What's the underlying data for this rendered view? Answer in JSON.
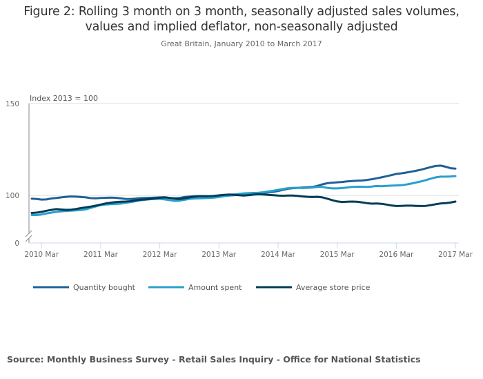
{
  "header": {
    "title_line1": "Figure 2: Rolling 3 month on 3 month, seasonally adjusted sales volumes,",
    "title_line2": "values and implied deflator, non-seasonally adjusted",
    "subtitle": "Great Britain, January 2010 to March 2017"
  },
  "source": "Source: Monthly Business Survey - Retail Sales Inquiry - Office for National Statistics",
  "chart_data": {
    "type": "line",
    "title": "Figure 2: Rolling 3 month on 3 month, seasonally adjusted sales volumes, values and implied deflator, non-seasonally adjusted",
    "subtitle": "Great Britain, January 2010 to March 2017",
    "xlabel": "",
    "ylabel": "Index 2013 = 100",
    "y_ticks": [
      0,
      100,
      150
    ],
    "y_axis_break": true,
    "ylim_display": [
      88,
      150
    ],
    "x_start": "2010 Jan",
    "x_end": "2017 Mar",
    "x_tick_labels": [
      "2010 Mar",
      "2011 Mar",
      "2012 Mar",
      "2013 Mar",
      "2014 Mar",
      "2015 Mar",
      "2016 Mar",
      "2017 Mar"
    ],
    "x_tick_month_index": [
      2,
      14,
      26,
      38,
      50,
      62,
      74,
      86
    ],
    "grid": "horizontal",
    "legend_position": "bottom-left",
    "series": [
      {
        "name": "Quantity bought",
        "color": "#206095",
        "values": [
          98.2,
          98.0,
          97.7,
          97.8,
          98.3,
          98.6,
          98.9,
          99.2,
          99.4,
          99.3,
          99.1,
          98.9,
          98.5,
          98.4,
          98.6,
          98.7,
          98.8,
          98.7,
          98.4,
          98.1,
          98.0,
          98.2,
          98.5,
          98.6,
          98.7,
          98.8,
          98.9,
          99.0,
          98.6,
          98.4,
          98.6,
          99.1,
          99.3,
          99.5,
          99.6,
          99.6,
          99.5,
          99.3,
          99.4,
          99.7,
          99.9,
          100.1,
          100.3,
          100.5,
          100.8,
          101.1,
          101.3,
          101.4,
          101.6,
          101.9,
          102.4,
          103.0,
          103.6,
          103.9,
          104.1,
          104.3,
          104.4,
          104.6,
          105.2,
          106.0,
          106.6,
          106.9,
          107.1,
          107.3,
          107.6,
          107.8,
          108.0,
          108.1,
          108.4,
          108.8,
          109.3,
          109.8,
          110.4,
          111.0,
          111.7,
          112.0,
          112.4,
          112.9,
          113.4,
          114.0,
          114.7,
          115.4,
          116.0,
          116.2,
          115.6,
          114.8,
          114.6
        ]
      },
      {
        "name": "Amount spent",
        "color": "#27a0cc",
        "values": [
          89.3,
          89.3,
          89.6,
          90.2,
          90.6,
          91.0,
          91.3,
          91.5,
          91.7,
          91.8,
          92.0,
          92.4,
          93.2,
          94.0,
          94.7,
          95.0,
          95.2,
          95.3,
          95.5,
          95.9,
          96.3,
          96.8,
          97.3,
          97.6,
          97.9,
          98.1,
          98.1,
          97.8,
          97.4,
          97.0,
          97.1,
          97.6,
          98.1,
          98.3,
          98.4,
          98.5,
          98.6,
          98.8,
          99.1,
          99.5,
          99.9,
          100.3,
          100.8,
          101.1,
          101.2,
          101.3,
          101.4,
          101.7,
          102.1,
          102.5,
          103.0,
          103.5,
          103.9,
          104.1,
          104.1,
          104.0,
          104.1,
          104.3,
          104.6,
          104.6,
          104.1,
          103.8,
          103.8,
          104.0,
          104.3,
          104.6,
          104.7,
          104.7,
          104.6,
          104.8,
          105.1,
          105.0,
          105.2,
          105.3,
          105.4,
          105.5,
          105.9,
          106.4,
          107.0,
          107.6,
          108.3,
          109.1,
          109.8,
          110.2,
          110.2,
          110.3,
          110.5
        ]
      },
      {
        "name": "Average store price",
        "color": "#003c57",
        "values": [
          90.4,
          90.6,
          91.0,
          91.6,
          92.1,
          92.5,
          92.3,
          92.1,
          92.2,
          92.6,
          93.1,
          93.5,
          93.9,
          94.4,
          95.0,
          95.6,
          96.0,
          96.3,
          96.5,
          96.6,
          96.8,
          97.2,
          97.6,
          97.8,
          98.0,
          98.3,
          98.7,
          98.9,
          98.6,
          98.2,
          98.0,
          98.4,
          98.9,
          99.3,
          99.5,
          99.5,
          99.5,
          99.7,
          100.0,
          100.3,
          100.4,
          100.4,
          100.1,
          99.9,
          100.1,
          100.4,
          100.6,
          100.5,
          100.3,
          100.1,
          99.9,
          99.8,
          99.9,
          99.9,
          99.7,
          99.4,
          99.2,
          99.1,
          99.2,
          98.9,
          98.2,
          97.4,
          96.7,
          96.4,
          96.5,
          96.6,
          96.5,
          96.2,
          95.8,
          95.5,
          95.6,
          95.4,
          95.0,
          94.5,
          94.2,
          94.3,
          94.4,
          94.4,
          94.3,
          94.2,
          94.3,
          94.7,
          95.2,
          95.6,
          95.8,
          96.1,
          96.6
        ]
      }
    ]
  }
}
